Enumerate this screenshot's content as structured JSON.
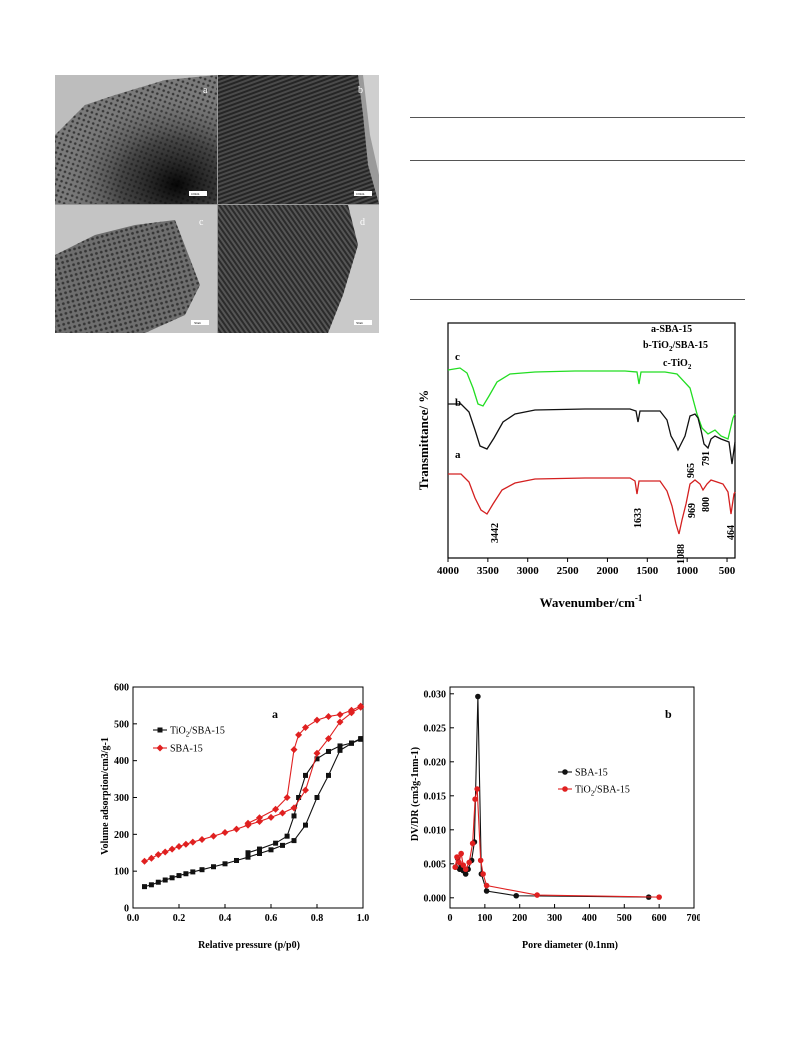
{
  "tem": {
    "labels": [
      "a",
      "b",
      "c",
      "d"
    ],
    "scale_bars": [
      "100nm",
      "100nm",
      "50nm",
      "50nm"
    ]
  },
  "ftir": {
    "type": "line",
    "xlabel": "Wavenumber/cm",
    "xlabel_sup": "-1",
    "ylabel": "Transmittance/ %",
    "xlim": [
      4000,
      400
    ],
    "xticks": [
      4000,
      3500,
      3000,
      2500,
      2000,
      1500,
      1000,
      500
    ],
    "legend": [
      {
        "prefix": "a-SBA-15",
        "sub": "",
        "suffix": ""
      },
      {
        "prefix": "b-TiO",
        "sub": "2",
        "suffix": "/SBA-15"
      },
      {
        "prefix": "c-TiO",
        "sub": "2",
        "suffix": ""
      }
    ],
    "curve_labels": [
      "a",
      "b",
      "c"
    ],
    "colors": {
      "a": "#d42020",
      "b": "#111111",
      "c": "#22dd22"
    },
    "annotations": [
      "3442",
      "1633",
      "1088",
      "969",
      "800",
      "464",
      "965",
      "791"
    ]
  },
  "chart_data": [
    {
      "type": "line",
      "title": "a",
      "xlabel": "Relative pressure (p/p0)",
      "ylabel": "Volume adsorption/cm3/g-1",
      "xlim": [
        0.0,
        1.0
      ],
      "ylim": [
        0,
        600
      ],
      "xticks": [
        0.0,
        0.2,
        0.4,
        0.6,
        0.8,
        1.0
      ],
      "yticks": [
        0,
        100,
        200,
        300,
        400,
        500,
        600
      ],
      "legend_placement": "top-left",
      "series": [
        {
          "name": "TiO2/SBA-15",
          "name_parts": {
            "prefix": "TiO",
            "sub": "2",
            "suffix": "/SBA-15"
          },
          "color": "#111111",
          "marker": "square",
          "adsorption": [
            [
              0.05,
              58
            ],
            [
              0.08,
              63
            ],
            [
              0.11,
              70
            ],
            [
              0.14,
              76
            ],
            [
              0.17,
              82
            ],
            [
              0.2,
              88
            ],
            [
              0.23,
              93
            ],
            [
              0.26,
              98
            ],
            [
              0.3,
              104
            ],
            [
              0.35,
              112
            ],
            [
              0.4,
              120
            ],
            [
              0.45,
              129
            ],
            [
              0.5,
              138
            ],
            [
              0.55,
              148
            ],
            [
              0.6,
              158
            ],
            [
              0.65,
              170
            ],
            [
              0.7,
              183
            ],
            [
              0.75,
              225
            ],
            [
              0.8,
              300
            ],
            [
              0.85,
              360
            ],
            [
              0.9,
              428
            ],
            [
              0.95,
              447
            ],
            [
              0.99,
              458
            ]
          ],
          "desorption": [
            [
              0.99,
              460
            ],
            [
              0.95,
              448
            ],
            [
              0.9,
              440
            ],
            [
              0.85,
              425
            ],
            [
              0.8,
              405
            ],
            [
              0.75,
              360
            ],
            [
              0.72,
              300
            ],
            [
              0.7,
              250
            ],
            [
              0.67,
              195
            ],
            [
              0.62,
              176
            ],
            [
              0.55,
              160
            ],
            [
              0.5,
              150
            ]
          ]
        },
        {
          "name": "SBA-15",
          "name_parts": {
            "prefix": "SBA-15",
            "sub": "",
            "suffix": ""
          },
          "color": "#e02020",
          "marker": "diamond",
          "adsorption": [
            [
              0.05,
              127
            ],
            [
              0.08,
              135
            ],
            [
              0.11,
              145
            ],
            [
              0.14,
              152
            ],
            [
              0.17,
              160
            ],
            [
              0.2,
              167
            ],
            [
              0.23,
              173
            ],
            [
              0.26,
              179
            ],
            [
              0.3,
              186
            ],
            [
              0.35,
              195
            ],
            [
              0.4,
              205
            ],
            [
              0.45,
              214
            ],
            [
              0.5,
              225
            ],
            [
              0.55,
              235
            ],
            [
              0.6,
              246
            ],
            [
              0.65,
              258
            ],
            [
              0.7,
              272
            ],
            [
              0.75,
              320
            ],
            [
              0.8,
              420
            ],
            [
              0.85,
              460
            ],
            [
              0.9,
              505
            ],
            [
              0.95,
              530
            ],
            [
              0.99,
              545
            ]
          ],
          "desorption": [
            [
              0.99,
              548
            ],
            [
              0.95,
              537
            ],
            [
              0.9,
              525
            ],
            [
              0.85,
              520
            ],
            [
              0.8,
              510
            ],
            [
              0.75,
              490
            ],
            [
              0.72,
              470
            ],
            [
              0.7,
              430
            ],
            [
              0.67,
              300
            ],
            [
              0.62,
              268
            ],
            [
              0.55,
              245
            ],
            [
              0.5,
              230
            ]
          ]
        }
      ]
    },
    {
      "type": "line",
      "title": "b",
      "xlabel": "Pore diameter (0.1nm)",
      "ylabel": "DV/DR (cm3g-1nm-1)",
      "xlim": [
        0,
        700
      ],
      "ylim": [
        -0.0015,
        0.031
      ],
      "xticks": [
        0,
        100,
        200,
        300,
        400,
        500,
        600,
        700
      ],
      "yticks": [
        "0.000",
        "0.005",
        "0.010",
        "0.015",
        "0.020",
        "0.025",
        "0.030"
      ],
      "legend_placement": "center-right",
      "series": [
        {
          "name": "SBA-15",
          "name_parts": {
            "prefix": "SBA-15",
            "sub": "",
            "suffix": ""
          },
          "color": "#111111",
          "marker": "circle",
          "points": [
            [
              16,
              0.0045
            ],
            [
              22,
              0.0058
            ],
            [
              28,
              0.0042
            ],
            [
              33,
              0.0047
            ],
            [
              38,
              0.004
            ],
            [
              45,
              0.0035
            ],
            [
              52,
              0.0042
            ],
            [
              62,
              0.0055
            ],
            [
              70,
              0.0082
            ],
            [
              80,
              0.0296
            ],
            [
              90,
              0.0035
            ],
            [
              105,
              0.001
            ],
            [
              190,
              0.0003
            ],
            [
              570,
              0.0001
            ]
          ]
        },
        {
          "name": "TiO2/SBA-15",
          "name_parts": {
            "prefix": "TiO",
            "sub": "2",
            "suffix": "/SBA-15"
          },
          "color": "#e02020",
          "marker": "circle",
          "points": [
            [
              15,
              0.0045
            ],
            [
              20,
              0.006
            ],
            [
              26,
              0.0052
            ],
            [
              32,
              0.0065
            ],
            [
              38,
              0.0048
            ],
            [
              45,
              0.0042
            ],
            [
              55,
              0.0052
            ],
            [
              65,
              0.008
            ],
            [
              72,
              0.0145
            ],
            [
              78,
              0.016
            ],
            [
              88,
              0.0055
            ],
            [
              95,
              0.0035
            ],
            [
              105,
              0.0018
            ],
            [
              250,
              0.0004
            ],
            [
              600,
              0.0001
            ]
          ]
        }
      ]
    }
  ]
}
